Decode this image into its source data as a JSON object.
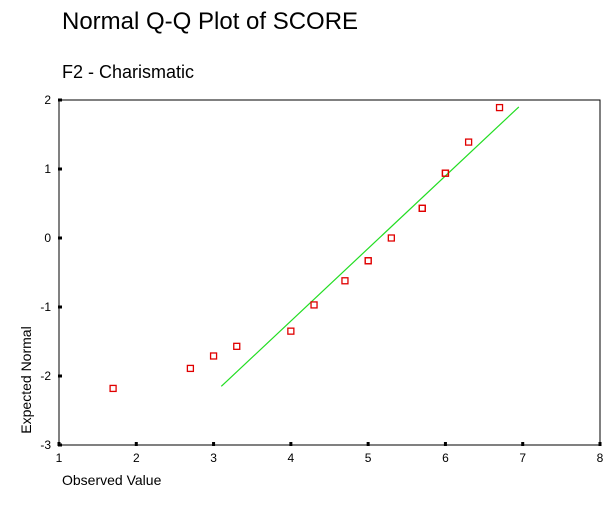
{
  "chart_data": {
    "type": "scatter",
    "title": "Normal Q-Q Plot of SCORE",
    "subtitle": "F2 - Charismatic",
    "xlabel": "Observed Value",
    "ylabel": "Expected Normal",
    "xlim": [
      1,
      8
    ],
    "ylim": [
      -3,
      2
    ],
    "xticks": [
      "1",
      "2",
      "3",
      "4",
      "5",
      "6",
      "7",
      "8"
    ],
    "yticks": [
      "2",
      "1",
      "0",
      "-1",
      "-2",
      "-3"
    ],
    "grid": false,
    "points": {
      "x": [
        1.7,
        2.7,
        3.0,
        3.3,
        4.0,
        4.3,
        4.7,
        5.0,
        5.0,
        5.3,
        5.7,
        5.7,
        6.0,
        6.0,
        6.3,
        6.7
      ],
      "y": [
        -2.18,
        -1.89,
        -1.71,
        -1.57,
        -1.35,
        -0.97,
        -0.62,
        -0.33,
        -0.33,
        0.0,
        0.43,
        0.43,
        0.94,
        0.94,
        1.39,
        1.89
      ]
    },
    "reference_line": {
      "x": [
        3.1,
        6.95
      ],
      "y": [
        -2.15,
        1.9
      ]
    },
    "colors": {
      "points": "#e00000",
      "reference_line": "#22dd22",
      "axis": "#000000"
    }
  }
}
